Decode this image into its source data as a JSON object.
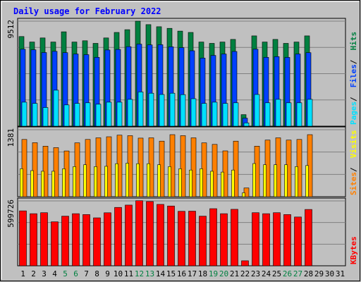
{
  "chart_data": {
    "type": "bar",
    "title": "Daily usage for February 2022",
    "categories": [
      "1",
      "2",
      "3",
      "4",
      "5",
      "6",
      "7",
      "8",
      "9",
      "10",
      "11",
      "12",
      "13",
      "14",
      "15",
      "16",
      "17",
      "18",
      "19",
      "20",
      "21",
      "22",
      "23",
      "24",
      "25",
      "26",
      "27",
      "28",
      "29",
      "30",
      "31"
    ],
    "weekend_days": [
      "5",
      "6",
      "12",
      "13",
      "19",
      "20",
      "26",
      "27"
    ],
    "colors": {
      "hits": "#008040",
      "files": "#0040ff",
      "pages": "#00e0ff",
      "visits": "#ffff00",
      "sites": "#ff8000",
      "kbytes": "#ff0000",
      "title": "#0000ff",
      "weekend_tick": "#008040",
      "weekday_tick": "#000000",
      "background": "#c0c0c0",
      "panel": "#c0c0c0"
    },
    "panels": [
      {
        "id": "hits-files-pages",
        "ymax_label": "9512",
        "ymax": 9512,
        "legend": [
          {
            "text": "Pages",
            "color": "#00e0ff"
          },
          {
            "text": "Files",
            "color": "#0040ff"
          },
          {
            "text": "Hits",
            "color": "#008040"
          }
        ],
        "series": [
          {
            "name": "Hits",
            "color": "#008040",
            "values": [
              8120,
              7620,
              7990,
              7620,
              8550,
              7620,
              7740,
              7500,
              7990,
              8490,
              8740,
              9510,
              9200,
              9010,
              8860,
              8610,
              8490,
              7620,
              7500,
              7620,
              7860,
              1050,
              8180,
              7620,
              7860,
              7500,
              7620,
              8180,
              0,
              0,
              0
            ]
          },
          {
            "name": "Files",
            "color": "#0040ff",
            "values": [
              6970,
              6920,
              6670,
              6780,
              6660,
              6540,
              6480,
              6240,
              6900,
              6950,
              7200,
              7430,
              7360,
              7380,
              7190,
              7110,
              6830,
              6170,
              6410,
              6540,
              6770,
              730,
              6970,
              6240,
              6300,
              6230,
              6540,
              6660,
              0,
              0,
              0
            ]
          },
          {
            "name": "Pages",
            "color": "#00e0ff",
            "values": [
              2180,
              2060,
              1690,
              3260,
              1930,
              2060,
              2120,
              1990,
              2180,
              2180,
              2430,
              3100,
              2990,
              2870,
              2990,
              2860,
              2490,
              2060,
              2180,
              2060,
              2120,
              300,
              2870,
              2120,
              2430,
              2120,
              2120,
              2430,
              0,
              0,
              0
            ]
          }
        ]
      },
      {
        "id": "sites-visits",
        "ymax_label": "1381",
        "ymax": 1381,
        "legend": [
          {
            "text": "Sites",
            "color": "#ff8000"
          },
          {
            "text": "Visits",
            "color": "#ffff00"
          }
        ],
        "series": [
          {
            "name": "Sites",
            "color": "#ff8000",
            "values": [
              1181,
              1114,
              1043,
              1012,
              943,
              1111,
              1181,
              1214,
              1236,
              1269,
              1259,
              1208,
              1214,
              1146,
              1279,
              1259,
              1214,
              1111,
              1078,
              945,
              1146,
              180,
              1043,
              1167,
              1214,
              1167,
              1181,
              1279,
              0,
              0,
              0
            ]
          },
          {
            "name": "Visits",
            "color": "#ffff00",
            "values": [
              576,
              538,
              525,
              525,
              576,
              621,
              658,
              621,
              626,
              680,
              690,
              681,
              681,
              658,
              621,
              576,
              549,
              576,
              525,
              508,
              549,
              80,
              683,
              658,
              658,
              658,
              621,
              642,
              0,
              0,
              0
            ]
          }
        ]
      },
      {
        "id": "kbytes",
        "ymax_label": "599726",
        "ymax": 599726,
        "legend": [
          {
            "text": "KBytes",
            "color": "#ff0000"
          }
        ],
        "series": [
          {
            "name": "KBytes",
            "color": "#ff0000",
            "values": [
              508000,
              482000,
              491000,
              407000,
              459000,
              482000,
              474000,
              443000,
              490000,
              540000,
              561000,
              602000,
              594000,
              568000,
              553000,
              504000,
              505000,
              459000,
              528000,
              482000,
              522000,
              46000,
              491000,
              482000,
              491000,
              474000,
              451000,
              521000,
              0,
              0,
              0
            ]
          }
        ]
      }
    ]
  }
}
